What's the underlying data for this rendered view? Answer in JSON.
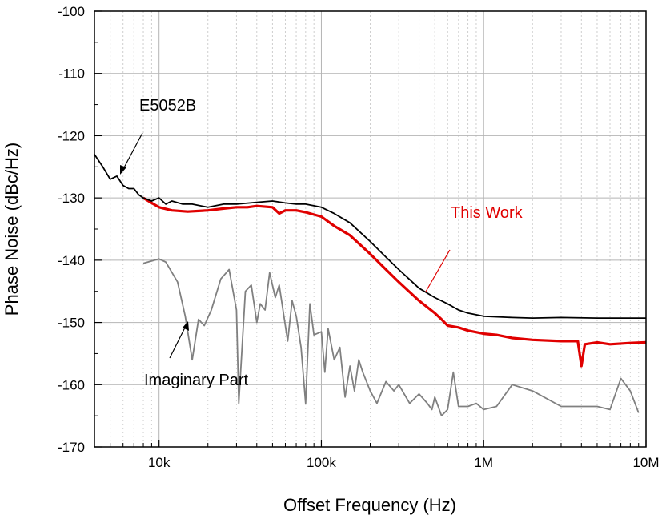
{
  "chart_data": {
    "type": "line",
    "title": "",
    "xlabel": "Offset Frequency (Hz)",
    "ylabel": "Phase Noise (dBc/Hz)",
    "xscale": "log",
    "xlim": [
      4000,
      10000000
    ],
    "ylim": [
      -170,
      -100
    ],
    "grid": true,
    "x_ticks": [
      {
        "value": 10000,
        "label": "10k"
      },
      {
        "value": 100000,
        "label": "100k"
      },
      {
        "value": 1000000,
        "label": "1M"
      },
      {
        "value": 10000000,
        "label": "10M"
      }
    ],
    "y_ticks": [
      {
        "value": -100,
        "label": "-100"
      },
      {
        "value": -110,
        "label": "-110"
      },
      {
        "value": -120,
        "label": "-120"
      },
      {
        "value": -130,
        "label": "-130"
      },
      {
        "value": -140,
        "label": "-140"
      },
      {
        "value": -150,
        "label": "-150"
      },
      {
        "value": -160,
        "label": "-160"
      },
      {
        "value": -170,
        "label": "-170"
      }
    ],
    "series": [
      {
        "name": "E5052B",
        "color": "#000000",
        "x": [
          4000,
          4500,
          5000,
          5500,
          6000,
          6500,
          7000,
          7500,
          8000,
          9000,
          10000,
          11000,
          12000,
          14000,
          16000,
          20000,
          25000,
          30000,
          40000,
          50000,
          60000,
          70000,
          80000,
          100000,
          120000,
          150000,
          200000,
          250000,
          300000,
          400000,
          500000,
          600000,
          700000,
          800000,
          1000000,
          1500000,
          2000000,
          3000000,
          5000000,
          7000000,
          10000000
        ],
        "y": [
          -123,
          -125,
          -127,
          -126.5,
          -128,
          -128.5,
          -128.5,
          -129.5,
          -130,
          -130.5,
          -130,
          -131,
          -130.5,
          -131,
          -131,
          -131.5,
          -131,
          -131,
          -130.7,
          -130.5,
          -130.8,
          -131,
          -131,
          -131.5,
          -132.5,
          -134,
          -137,
          -139.5,
          -141.5,
          -144.5,
          -146,
          -147,
          -148,
          -148.5,
          -149,
          -149.2,
          -149.3,
          -149.2,
          -149.3,
          -149.3,
          -149.3
        ]
      },
      {
        "name": "This Work",
        "color": "#e00000",
        "x": [
          8000,
          9000,
          10000,
          12000,
          15000,
          20000,
          25000,
          30000,
          35000,
          40000,
          50000,
          55000,
          60000,
          70000,
          80000,
          100000,
          120000,
          150000,
          200000,
          250000,
          300000,
          400000,
          500000,
          550000,
          600000,
          700000,
          800000,
          1000000,
          1200000,
          1500000,
          2000000,
          3000000,
          3800000,
          4000000,
          4200000,
          5000000,
          6000000,
          8000000,
          10000000
        ],
        "y": [
          -130,
          -130.8,
          -131.5,
          -132,
          -132.2,
          -132,
          -131.7,
          -131.5,
          -131.5,
          -131.3,
          -131.5,
          -132.5,
          -132,
          -132,
          -132.3,
          -133,
          -134.5,
          -136,
          -139,
          -141.5,
          -143.5,
          -146.5,
          -148.5,
          -149.5,
          -150.5,
          -150.8,
          -151.3,
          -151.8,
          -152,
          -152.5,
          -152.8,
          -153,
          -153,
          -157,
          -153.5,
          -153.2,
          -153.5,
          -153.3,
          -153.2
        ]
      },
      {
        "name": "Imaginary Part",
        "color": "#808080",
        "x": [
          8000,
          10000,
          11000,
          13000,
          14500,
          16000,
          17500,
          19000,
          21000,
          24000,
          27000,
          30000,
          31000,
          34000,
          37000,
          40000,
          42000,
          45000,
          48000,
          52000,
          55000,
          58000,
          62000,
          66000,
          70000,
          75000,
          80000,
          85000,
          90000,
          100000,
          105000,
          110000,
          120000,
          130000,
          140000,
          150000,
          160000,
          170000,
          180000,
          200000,
          220000,
          250000,
          280000,
          300000,
          350000,
          400000,
          450000,
          480000,
          500000,
          550000,
          600000,
          650000,
          700000,
          800000,
          900000,
          1000000,
          1200000,
          1500000,
          2000000,
          3000000,
          3500000,
          4000000,
          5000000,
          6000000,
          7000000,
          8000000,
          9000000
        ],
        "y": [
          -140.5,
          -139.8,
          -140.3,
          -143.5,
          -149,
          -156,
          -149.5,
          -150.5,
          -148,
          -143,
          -141.5,
          -148,
          -163,
          -145,
          -144,
          -150,
          -147,
          -148,
          -142,
          -146,
          -144,
          -148,
          -153,
          -146.5,
          -149,
          -154,
          -163,
          -147,
          -152,
          -151.5,
          -158,
          -151,
          -156,
          -154,
          -162,
          -157,
          -161,
          -156,
          -158,
          -161,
          -163,
          -159.5,
          -161,
          -160,
          -163,
          -161.5,
          -163,
          -164,
          -162,
          -165,
          -164,
          -158,
          -163.5,
          -163.5,
          -163,
          -164,
          -163.5,
          -160,
          -161,
          -163.5,
          -163.5,
          -163.5,
          -163.5,
          -164,
          -159,
          -161,
          -164.5
        ]
      }
    ],
    "annotations": [
      {
        "text": "E5052B",
        "color": "#000000"
      },
      {
        "text": "This Work",
        "color": "#e00000"
      },
      {
        "text": "Imaginary Part",
        "color": "#000000"
      }
    ]
  }
}
